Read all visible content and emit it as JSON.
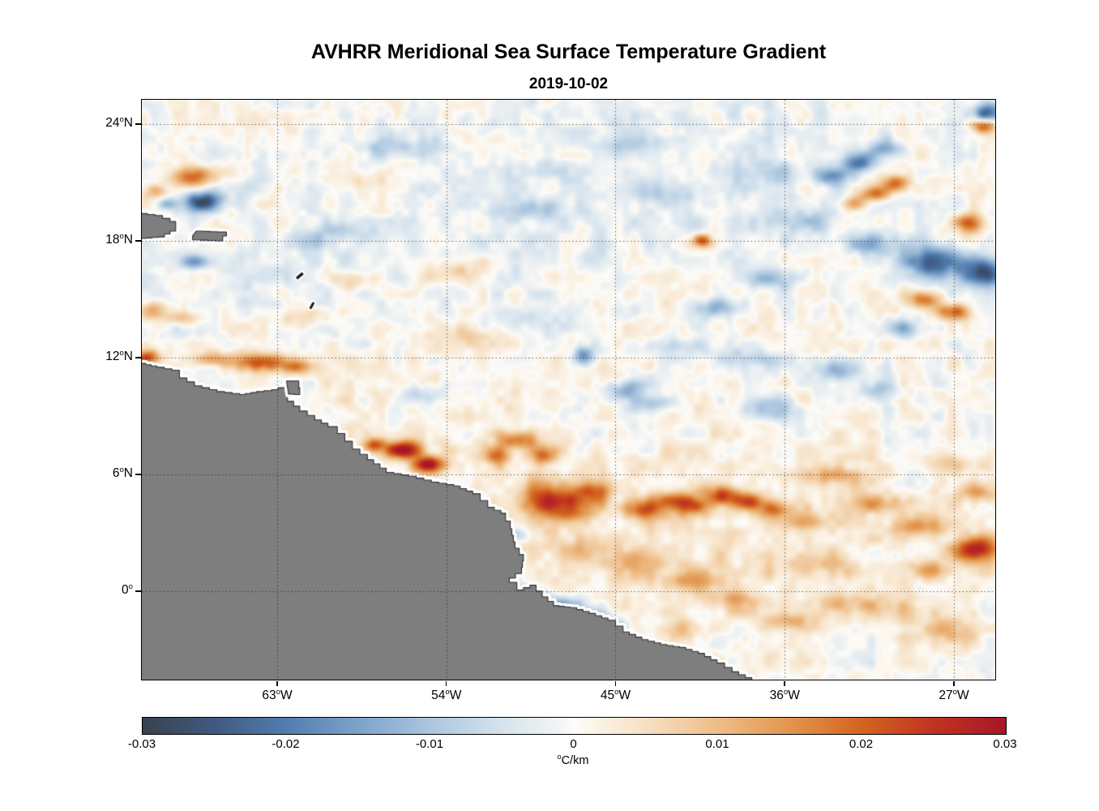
{
  "figure": {
    "title": "AVHRR Meridional Sea Surface Temperature Gradient",
    "subtitle": "2019-10-02"
  },
  "chart_data": {
    "type": "heatmap",
    "title": "AVHRR Meridional Sea Surface Temperature Gradient",
    "subtitle_date": "2019-10-02",
    "grid": "dotted",
    "x_axis": {
      "unit": "degrees west longitude",
      "range": [
        -70.2,
        -24.8
      ],
      "ticks": [
        {
          "v": -63,
          "deg": "63",
          "hem": "W"
        },
        {
          "v": -54,
          "deg": "54",
          "hem": "W"
        },
        {
          "v": -45,
          "deg": "45",
          "hem": "W"
        },
        {
          "v": -36,
          "deg": "36",
          "hem": "W"
        },
        {
          "v": -27,
          "deg": "27",
          "hem": "W"
        }
      ]
    },
    "y_axis": {
      "unit": "degrees north latitude",
      "range": [
        -4.55,
        25.25
      ],
      "ticks": [
        {
          "v": 24,
          "deg": "24",
          "hem": "N"
        },
        {
          "v": 18,
          "deg": "18",
          "hem": "N"
        },
        {
          "v": 12,
          "deg": "12",
          "hem": "N"
        },
        {
          "v": 6,
          "deg": "6",
          "hem": "N"
        },
        {
          "v": 0,
          "deg": "0",
          "hem": ""
        }
      ]
    },
    "colorbar": {
      "range": [
        -0.03,
        0.03
      ],
      "unit_sup": "o",
      "unit_main": "C/km",
      "unit_label": "°C/km",
      "ticks": [
        {
          "v": -0.03,
          "label": "-0.03"
        },
        {
          "v": -0.02,
          "label": "-0.02"
        },
        {
          "v": -0.01,
          "label": "-0.01"
        },
        {
          "v": 0,
          "label": "0"
        },
        {
          "v": 0.01,
          "label": "0.01"
        },
        {
          "v": 0.02,
          "label": "0.02"
        },
        {
          "v": 0.03,
          "label": "0.03"
        }
      ],
      "colormap": [
        {
          "v": -0.03,
          "c": "#39424c"
        },
        {
          "v": -0.025,
          "c": "#3f5a82"
        },
        {
          "v": -0.02,
          "c": "#527dae"
        },
        {
          "v": -0.015,
          "c": "#7da3cb"
        },
        {
          "v": -0.01,
          "c": "#abc6de"
        },
        {
          "v": -0.005,
          "c": "#d5e3ee"
        },
        {
          "v": -0.001,
          "c": "#f3f5f4"
        },
        {
          "v": 0.0,
          "c": "#fdfcf9"
        },
        {
          "v": 0.001,
          "c": "#fcf6ec"
        },
        {
          "v": 0.005,
          "c": "#f6e0c3"
        },
        {
          "v": 0.01,
          "c": "#eebd87"
        },
        {
          "v": 0.015,
          "c": "#e2954d"
        },
        {
          "v": 0.02,
          "c": "#d3641f"
        },
        {
          "v": 0.025,
          "c": "#c03321"
        },
        {
          "v": 0.03,
          "c": "#a81626"
        }
      ]
    },
    "background_noise_amplitude": 0.0055,
    "features": {
      "format": [
        "lon",
        "lat",
        "sigma_lon_deg",
        "sigma_lat_deg",
        "amplitude_C_per_km"
      ],
      "list": [
        [
          -67.5,
          21.3,
          1.2,
          0.55,
          0.021
        ],
        [
          -69.4,
          20.5,
          0.6,
          0.4,
          0.013
        ],
        [
          -69.7,
          14.4,
          0.9,
          0.45,
          0.016
        ],
        [
          -68.0,
          14.0,
          0.8,
          0.35,
          0.011
        ],
        [
          -69.9,
          12.0,
          0.7,
          0.4,
          0.022
        ],
        [
          -66.4,
          11.9,
          1.0,
          0.35,
          0.013
        ],
        [
          -63.9,
          11.75,
          1.4,
          0.45,
          0.021
        ],
        [
          -61.9,
          11.5,
          0.8,
          0.35,
          0.014
        ],
        [
          -40.4,
          18.0,
          0.5,
          0.35,
          0.023
        ],
        [
          -26.2,
          18.9,
          0.8,
          0.5,
          0.019
        ],
        [
          -32.3,
          19.9,
          0.7,
          0.4,
          0.017
        ],
        [
          -31.2,
          20.45,
          0.7,
          0.4,
          0.018
        ],
        [
          -30.1,
          20.95,
          0.7,
          0.4,
          0.016
        ],
        [
          -25.4,
          23.9,
          0.7,
          0.35,
          0.021
        ],
        [
          -28.6,
          15.0,
          0.9,
          0.45,
          0.019
        ],
        [
          -26.9,
          14.35,
          0.9,
          0.4,
          0.02
        ],
        [
          -56.3,
          7.25,
          1.0,
          0.45,
          0.03
        ],
        [
          -54.9,
          6.5,
          0.8,
          0.4,
          0.03
        ],
        [
          -57.9,
          7.5,
          0.6,
          0.35,
          0.018
        ],
        [
          -51.3,
          7.0,
          0.7,
          0.5,
          0.017
        ],
        [
          -50.2,
          7.75,
          0.9,
          0.45,
          0.019
        ],
        [
          -48.9,
          7.0,
          0.7,
          0.5,
          0.016
        ],
        [
          -48.8,
          4.8,
          1.3,
          0.9,
          0.02
        ],
        [
          -47.2,
          4.4,
          1.2,
          0.8,
          0.019
        ],
        [
          -46.0,
          5.2,
          0.9,
          0.6,
          0.016
        ],
        [
          -43.6,
          4.2,
          1.0,
          0.5,
          0.019
        ],
        [
          -42.2,
          4.65,
          0.9,
          0.5,
          0.017
        ],
        [
          -40.8,
          4.4,
          0.9,
          0.5,
          0.019
        ],
        [
          -39.3,
          4.9,
          0.9,
          0.5,
          0.021
        ],
        [
          -37.9,
          4.6,
          0.8,
          0.45,
          0.019
        ],
        [
          -36.5,
          4.2,
          0.8,
          0.45,
          0.017
        ],
        [
          -34.9,
          3.6,
          0.9,
          0.5,
          0.012
        ],
        [
          -25.9,
          2.2,
          1.2,
          0.65,
          0.027
        ],
        [
          -28.3,
          1.1,
          1.0,
          0.5,
          0.013
        ],
        [
          -66.9,
          20.0,
          1.05,
          0.5,
          -0.027
        ],
        [
          -68.9,
          19.9,
          0.5,
          0.35,
          -0.012
        ],
        [
          -67.4,
          16.9,
          0.8,
          0.4,
          -0.014
        ],
        [
          -33.4,
          21.3,
          0.8,
          0.45,
          -0.017
        ],
        [
          -32.0,
          22.0,
          0.9,
          0.5,
          -0.018
        ],
        [
          -30.6,
          22.7,
          0.8,
          0.45,
          -0.015
        ],
        [
          -25.3,
          24.6,
          0.8,
          0.5,
          -0.02
        ],
        [
          -28.2,
          16.9,
          1.4,
          0.8,
          -0.024
        ],
        [
          -25.6,
          16.4,
          1.2,
          0.8,
          -0.026
        ],
        [
          -29.8,
          13.5,
          1.0,
          0.5,
          -0.013
        ],
        [
          -46.7,
          12.05,
          0.55,
          0.5,
          -0.019
        ],
        [
          -44.6,
          10.3,
          1.1,
          0.5,
          -0.013
        ],
        [
          -43.0,
          9.6,
          1.0,
          0.45,
          -0.011
        ],
        [
          -55.3,
          10.1,
          1.1,
          0.5,
          -0.009
        ],
        [
          -36.8,
          9.3,
          1.4,
          0.55,
          -0.012
        ],
        [
          -33.1,
          11.4,
          1.1,
          0.5,
          -0.013
        ],
        [
          -31.0,
          10.3,
          0.9,
          0.45,
          -0.01
        ],
        [
          -39.4,
          14.6,
          1.2,
          0.5,
          -0.012
        ],
        [
          -36.9,
          16.0,
          1.1,
          0.5,
          -0.01
        ],
        [
          -51.0,
          1.1,
          0.8,
          0.5,
          -0.015
        ],
        [
          -49.7,
          -0.15,
          1.0,
          0.45,
          -0.021
        ],
        [
          -48.0,
          -0.8,
          1.2,
          0.45,
          -0.02
        ],
        [
          -46.2,
          -1.35,
          1.0,
          0.4,
          -0.015
        ],
        [
          -44.8,
          -1.85,
          0.8,
          0.4,
          -0.011
        ],
        [
          -50.3,
          2.9,
          0.8,
          0.4,
          -0.011
        ],
        [
          -45.0,
          21.0,
          14.0,
          5.0,
          -0.0022
        ],
        [
          -63.0,
          16.0,
          9.0,
          5.0,
          -0.0015
        ],
        [
          -40.0,
          2.5,
          13.0,
          5.0,
          0.0035
        ],
        [
          -58.0,
          10.0,
          8.0,
          4.0,
          0.0022
        ],
        [
          -56.5,
          22.8,
          2.5,
          0.5,
          -0.007
        ],
        [
          -49.5,
          19.5,
          2.2,
          0.5,
          -0.006
        ],
        [
          -59.5,
          18.5,
          2.0,
          0.5,
          -0.005
        ],
        [
          -53.5,
          16.5,
          2.0,
          0.6,
          0.006
        ],
        [
          -61.5,
          14.0,
          1.8,
          0.5,
          0.007
        ],
        [
          -50.0,
          14.0,
          2.2,
          0.6,
          -0.006
        ],
        [
          -42.0,
          12.5,
          2.0,
          0.5,
          -0.007
        ],
        [
          -38.0,
          12.0,
          2.2,
          0.6,
          -0.006
        ],
        [
          -35.0,
          19.0,
          2.0,
          0.6,
          -0.008
        ],
        [
          -42.5,
          20.5,
          2.0,
          0.6,
          -0.007
        ],
        [
          -37.0,
          21.5,
          2.2,
          0.6,
          -0.006
        ],
        [
          -31.5,
          17.8,
          1.6,
          0.6,
          -0.01
        ],
        [
          -44.0,
          23.0,
          2.0,
          0.5,
          -0.006
        ],
        [
          -58.5,
          21.0,
          1.5,
          0.6,
          0.006
        ],
        [
          -59.0,
          16.0,
          1.2,
          0.5,
          0.007
        ],
        [
          -61.0,
          18.0,
          1.2,
          0.5,
          -0.006
        ],
        [
          -53.0,
          13.0,
          1.5,
          0.7,
          0.006
        ],
        [
          -33.5,
          5.9,
          2.0,
          0.5,
          0.01
        ],
        [
          -31.0,
          4.5,
          1.8,
          0.5,
          0.012
        ],
        [
          -29.0,
          3.3,
          1.5,
          0.5,
          0.012
        ],
        [
          -27.0,
          6.5,
          1.5,
          0.5,
          0.01
        ],
        [
          -25.5,
          5.0,
          1.2,
          0.5,
          0.012
        ],
        [
          -34.5,
          1.5,
          2.0,
          0.6,
          0.008
        ],
        [
          -44.0,
          1.5,
          1.8,
          0.6,
          0.008
        ],
        [
          -41.0,
          0.5,
          1.8,
          0.5,
          0.009
        ],
        [
          -38.5,
          -0.5,
          1.8,
          0.5,
          0.008
        ],
        [
          -36.0,
          -1.5,
          1.8,
          0.5,
          0.009
        ],
        [
          -33.0,
          -0.5,
          1.8,
          0.6,
          0.008
        ],
        [
          -30.0,
          -1.0,
          1.8,
          0.6,
          0.009
        ],
        [
          -27.5,
          -2.0,
          1.8,
          0.6,
          0.01
        ],
        [
          -41.5,
          -2.0,
          1.5,
          0.5,
          0.007
        ],
        [
          -47.0,
          2.0,
          1.5,
          0.6,
          0.009
        ],
        [
          -52.5,
          4.0,
          1.2,
          0.5,
          0.01
        ],
        [
          -53.8,
          5.0,
          0.9,
          0.4,
          0.012
        ]
      ]
    },
    "land": {
      "color": "#7e7e7e",
      "coast_halo": "#ffffff",
      "outline": "#2f2f2f",
      "polygons": {
        "mainland": [
          [
            -70.3,
            11.7
          ],
          [
            -69.4,
            11.5
          ],
          [
            -68.6,
            11.35
          ],
          [
            -68.2,
            10.95
          ],
          [
            -67.4,
            10.55
          ],
          [
            -66.2,
            10.25
          ],
          [
            -65.0,
            10.1
          ],
          [
            -64.1,
            10.25
          ],
          [
            -63.3,
            10.35
          ],
          [
            -62.6,
            10.55
          ],
          [
            -62.1,
            10.7
          ],
          [
            -61.95,
            10.15
          ],
          [
            -62.45,
            9.75
          ],
          [
            -61.8,
            9.25
          ],
          [
            -61.0,
            8.8
          ],
          [
            -60.3,
            8.45
          ],
          [
            -59.8,
            8.1
          ],
          [
            -59.0,
            7.3
          ],
          [
            -58.2,
            6.75
          ],
          [
            -57.2,
            6.1
          ],
          [
            -56.0,
            5.9
          ],
          [
            -54.8,
            5.6
          ],
          [
            -53.6,
            5.4
          ],
          [
            -52.6,
            5.0
          ],
          [
            -51.8,
            4.3
          ],
          [
            -51.1,
            4.0
          ],
          [
            -50.6,
            3.2
          ],
          [
            -50.35,
            2.2
          ],
          [
            -49.9,
            1.55
          ],
          [
            -50.0,
            0.9
          ],
          [
            -50.65,
            0.45
          ],
          [
            -50.25,
            0.05
          ],
          [
            -49.55,
            0.3
          ],
          [
            -48.9,
            -0.3
          ],
          [
            -48.3,
            -0.75
          ],
          [
            -47.4,
            -0.85
          ],
          [
            -46.4,
            -1.15
          ],
          [
            -45.4,
            -1.5
          ],
          [
            -44.6,
            -2.1
          ],
          [
            -43.6,
            -2.5
          ],
          [
            -42.6,
            -2.75
          ],
          [
            -41.6,
            -2.9
          ],
          [
            -40.6,
            -3.2
          ],
          [
            -39.6,
            -3.7
          ],
          [
            -38.8,
            -4.15
          ],
          [
            -38.1,
            -4.45
          ],
          [
            -37.4,
            -4.8
          ],
          [
            -70.3,
            -4.8
          ]
        ],
        "hispaniola": [
          [
            -70.3,
            19.4
          ],
          [
            -69.5,
            19.3
          ],
          [
            -68.7,
            19.0
          ],
          [
            -68.4,
            18.5
          ],
          [
            -69.0,
            18.2
          ],
          [
            -70.3,
            18.1
          ]
        ],
        "puerto_rico": [
          [
            -67.3,
            18.5
          ],
          [
            -66.2,
            18.45
          ],
          [
            -65.7,
            18.25
          ],
          [
            -65.9,
            18.0
          ],
          [
            -67.1,
            18.05
          ],
          [
            -67.5,
            18.25
          ]
        ],
        "trinidad": [
          [
            -62.5,
            10.8
          ],
          [
            -61.9,
            10.8
          ],
          [
            -61.8,
            10.1
          ],
          [
            -62.4,
            10.15
          ]
        ]
      },
      "islets": [
        {
          "lon": -61.8,
          "lat": 16.2,
          "len": 10,
          "wid": 3.5,
          "angle": -40
        },
        {
          "lon": -61.15,
          "lat": 14.67,
          "len": 9,
          "wid": 3,
          "angle": -62
        }
      ]
    }
  }
}
